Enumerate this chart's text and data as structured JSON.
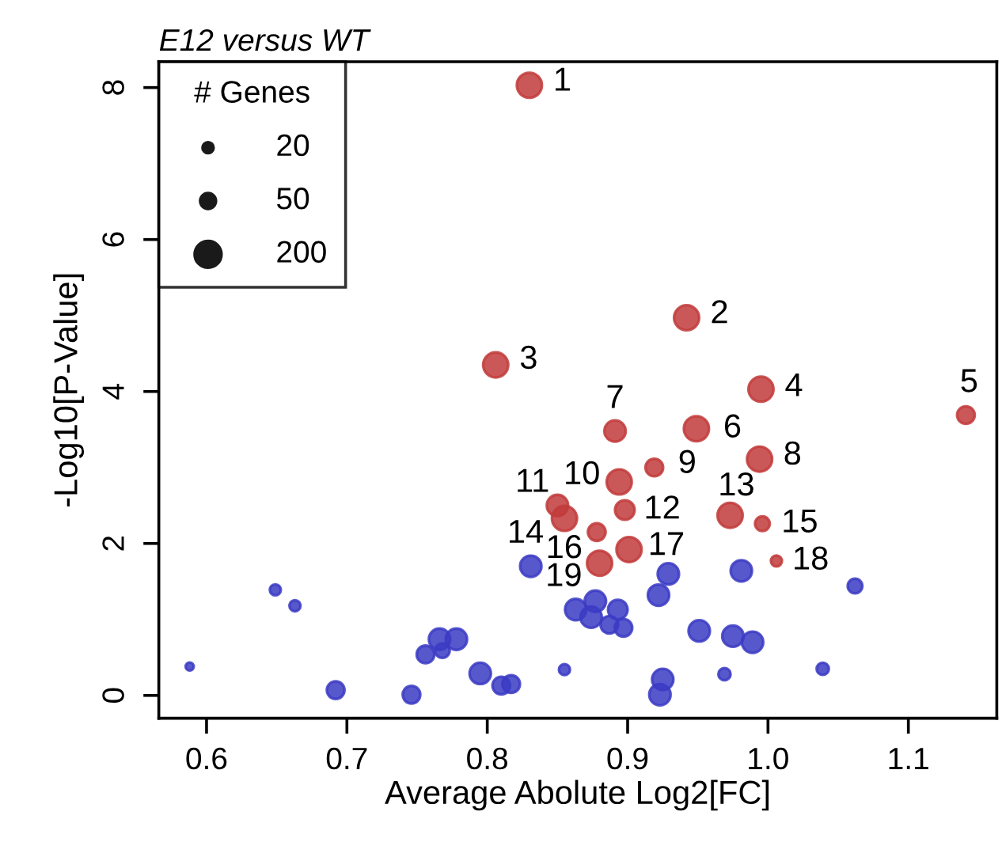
{
  "chart_data": {
    "type": "scatter",
    "title": "E12 versus WT",
    "xlabel": "Average Abolute Log2[FC]",
    "ylabel": "-Log10[P-Value]",
    "xlim": [
      0.566,
      1.163
    ],
    "ylim": [
      -0.3,
      8.34
    ],
    "xticks": [
      {
        "value": 0.6,
        "label": "0.6"
      },
      {
        "value": 0.7,
        "label": "0.7"
      },
      {
        "value": 0.8,
        "label": "0.8"
      },
      {
        "value": 0.9,
        "label": "0.9"
      },
      {
        "value": 1.0,
        "label": "1.0"
      },
      {
        "value": 1.1,
        "label": "1.1"
      }
    ],
    "yticks": [
      0,
      2,
      4,
      6,
      8
    ],
    "grid": false,
    "legend_title": "# Genes",
    "size_legend": [
      20,
      50,
      200
    ],
    "marker": "circle",
    "series": [
      {
        "color": "#c23b3b",
        "x": [
          0.83,
          0.942,
          0.806,
          0.995,
          1.141,
          0.949,
          0.891,
          0.994,
          0.919,
          0.894,
          0.85,
          0.898,
          0.973,
          0.855,
          0.996,
          0.878,
          0.901,
          1.006,
          0.88
        ],
        "values": [
          8.03,
          4.97,
          4.35,
          4.03,
          3.69,
          3.51,
          3.48,
          3.11,
          3.0,
          2.81,
          2.5,
          2.44,
          2.37,
          2.33,
          2.26,
          2.15,
          1.92,
          1.77,
          1.74
        ],
        "sizes": [
          160,
          160,
          160,
          160,
          63,
          160,
          100,
          160,
          63,
          160,
          100,
          80,
          160,
          160,
          40,
          63,
          160,
          20,
          160
        ]
      },
      {
        "color": "#3b3bc4",
        "x": [
          0.588,
          0.649,
          0.663,
          0.692,
          0.746,
          0.756,
          0.766,
          0.768,
          0.778,
          0.795,
          0.81,
          0.817,
          0.855,
          0.831,
          0.863,
          0.877,
          0.874,
          0.887,
          0.893,
          0.897,
          0.929,
          0.922,
          0.981,
          1.062,
          0.951,
          0.975,
          0.989,
          0.925,
          0.923,
          0.969,
          1.039
        ],
        "values": [
          0.38,
          1.39,
          1.18,
          0.07,
          0.01,
          0.54,
          0.74,
          0.59,
          0.74,
          0.29,
          0.13,
          0.15,
          0.34,
          1.7,
          1.13,
          1.24,
          1.03,
          0.93,
          1.13,
          0.89,
          1.6,
          1.32,
          1.64,
          1.44,
          0.85,
          0.78,
          0.7,
          0.21,
          0.01,
          0.28,
          0.35
        ],
        "sizes": [
          13,
          20,
          20,
          63,
          63,
          63,
          100,
          40,
          100,
          100,
          63,
          63,
          20,
          100,
          100,
          100,
          100,
          63,
          80,
          63,
          100,
          100,
          100,
          40,
          100,
          100,
          100,
          100,
          100,
          25,
          25
        ]
      }
    ],
    "annotations": [
      {
        "text": "1",
        "x": 0.83,
        "y": 8.03
      },
      {
        "text": "2",
        "x": 0.942,
        "y": 4.97
      },
      {
        "text": "3",
        "x": 0.806,
        "y": 4.35
      },
      {
        "text": "4",
        "x": 0.995,
        "y": 4.03
      },
      {
        "text": "5",
        "x": 1.141,
        "y": 3.69
      },
      {
        "text": "6",
        "x": 0.949,
        "y": 3.51
      },
      {
        "text": "7",
        "x": 0.891,
        "y": 3.48
      },
      {
        "text": "8",
        "x": 0.994,
        "y": 3.11
      },
      {
        "text": "9",
        "x": 0.919,
        "y": 3.0
      },
      {
        "text": "10",
        "x": 0.894,
        "y": 2.81
      },
      {
        "text": "11",
        "x": 0.85,
        "y": 2.5
      },
      {
        "text": "12",
        "x": 0.898,
        "y": 2.44
      },
      {
        "text": "13",
        "x": 0.973,
        "y": 2.37
      },
      {
        "text": "14",
        "x": 0.855,
        "y": 2.33
      },
      {
        "text": "15",
        "x": 0.996,
        "y": 2.26
      },
      {
        "text": "16",
        "x": 0.878,
        "y": 2.15
      },
      {
        "text": "17",
        "x": 0.901,
        "y": 1.92
      },
      {
        "text": "18",
        "x": 1.006,
        "y": 1.77
      },
      {
        "text": "19",
        "x": 0.88,
        "y": 1.74
      }
    ]
  }
}
